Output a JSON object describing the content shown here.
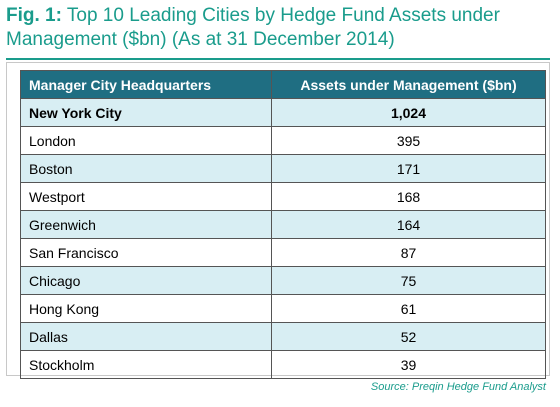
{
  "title": {
    "label": "Fig. 1:",
    "text": "Top 10 Leading Cities by Hedge Fund Assets under Management ($bn) (As at 31 December 2014)"
  },
  "table": {
    "columns": [
      "Manager City Headquarters",
      "Assets under Management ($bn)"
    ],
    "rows": [
      [
        "New York City",
        "1,024"
      ],
      [
        "London",
        "395"
      ],
      [
        "Boston",
        "171"
      ],
      [
        "Westport",
        "168"
      ],
      [
        "Greenwich",
        "164"
      ],
      [
        "San Francisco",
        "87"
      ],
      [
        "Chicago",
        "75"
      ],
      [
        "Hong Kong",
        "61"
      ],
      [
        "Dallas",
        "52"
      ],
      [
        "Stockholm",
        "39"
      ]
    ]
  },
  "source": "Source: Preqin Hedge Fund Analyst"
}
